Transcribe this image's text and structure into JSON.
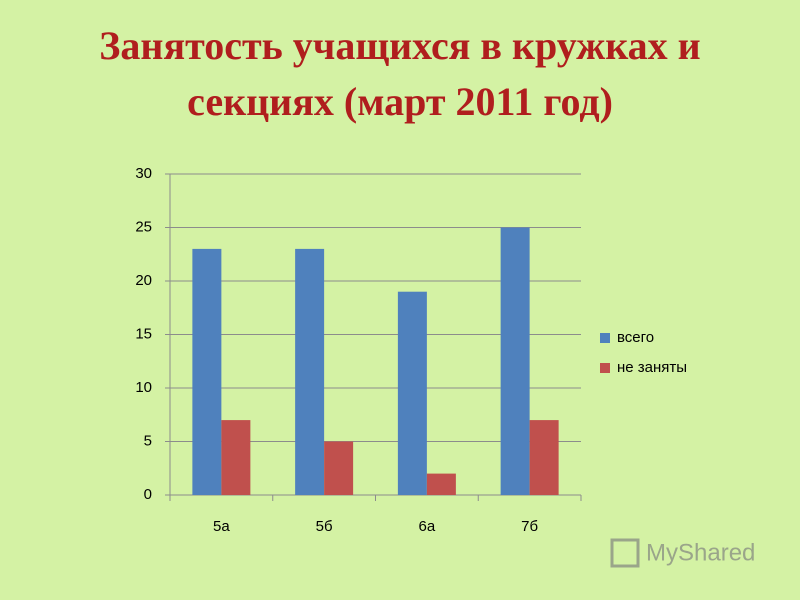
{
  "chart_data": {
    "type": "bar",
    "title": "Занятость учащихся в кружках и секциях (март 2011 год)",
    "categories": [
      "5а",
      "5б",
      "6а",
      "7б"
    ],
    "series": [
      {
        "name": "всего",
        "color": "#4f81bd",
        "values": [
          23,
          23,
          19,
          25
        ]
      },
      {
        "name": "не заняты",
        "color": "#c0504d",
        "values": [
          7,
          5,
          2,
          7
        ]
      }
    ],
    "ylim": [
      0,
      30
    ],
    "yticks": [
      0,
      5,
      10,
      15,
      20,
      25,
      30
    ],
    "grid": true,
    "legend": "right"
  },
  "watermark": "MyShared"
}
